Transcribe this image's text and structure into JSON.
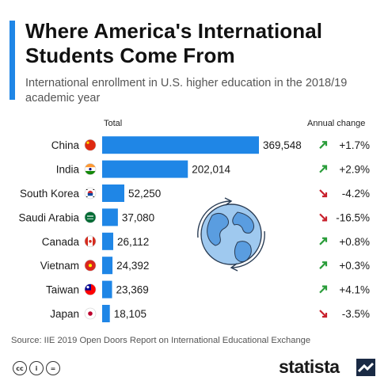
{
  "header": {
    "title": "Where America's International Students Come From",
    "subtitle": "International enrollment in U.S. higher education in the 2018/19 academic year"
  },
  "columns": {
    "total": "Total",
    "change": "Annual change"
  },
  "chart_data": {
    "type": "bar",
    "orientation": "horizontal",
    "title": "Where America's International Students Come From",
    "subtitle": "International enrollment in U.S. higher education in the 2018/19 academic year",
    "categories": [
      "China",
      "India",
      "South Korea",
      "Saudi Arabia",
      "Canada",
      "Vietnam",
      "Taiwan",
      "Japan"
    ],
    "values": [
      369548,
      202014,
      52250,
      37080,
      26112,
      24392,
      23369,
      18105
    ],
    "value_labels": [
      "369,548",
      "202,014",
      "52,250",
      "37,080",
      "26,112",
      "24,392",
      "23,369",
      "18,105"
    ],
    "annual_change": [
      "+1.7%",
      "+2.9%",
      "-4.2%",
      "-16.5%",
      "+0.8%",
      "+0.3%",
      "+4.1%",
      "-3.5%"
    ],
    "change_direction": [
      "up",
      "up",
      "down",
      "down",
      "up",
      "up",
      "up",
      "down"
    ],
    "flags": [
      "china-flag-icon",
      "india-flag-icon",
      "south-korea-flag-icon",
      "saudi-arabia-flag-icon",
      "canada-flag-icon",
      "vietnam-flag-icon",
      "taiwan-flag-icon",
      "japan-flag-icon"
    ],
    "xlim": [
      0,
      369548
    ],
    "grid": false,
    "legend": "none",
    "colors": {
      "bar": "#1f86e6",
      "up": "#2a9d3a",
      "down": "#c8202c"
    }
  },
  "footer": {
    "source": "Source: IIE 2019 Open Doors Report on International Educational Exchange",
    "license_icons": [
      "cc-icon",
      "by-icon",
      "nd-icon"
    ],
    "brand": "statista"
  },
  "colors": {
    "accent": "#1f86e6",
    "text": "#1a1a1a",
    "muted": "#555555"
  }
}
